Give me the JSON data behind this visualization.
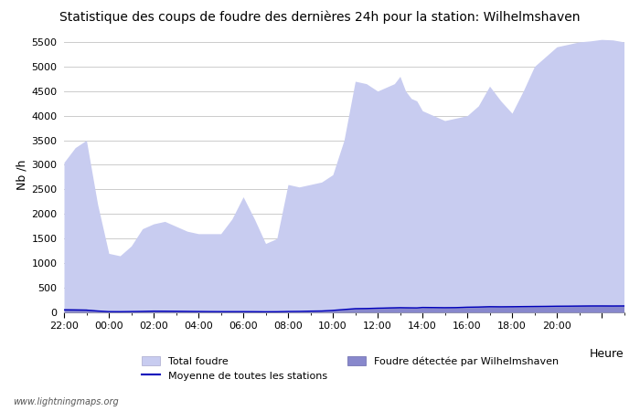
{
  "title": "Statistique des coups de foudre des dernières 24h pour la station: Wilhelmshaven",
  "ylabel": "Nb /h",
  "xlabel": "Heure",
  "watermark": "www.lightningmaps.org",
  "ylim": [
    0,
    5600
  ],
  "yticks": [
    0,
    500,
    1000,
    1500,
    2000,
    2500,
    3000,
    3500,
    4000,
    4500,
    5000,
    5500
  ],
  "xtick_labels": [
    "22:00",
    "00:00",
    "02:00",
    "04:00",
    "06:00",
    "08:00",
    "10:00",
    "12:00",
    "14:00",
    "16:00",
    "18:00",
    "20:00"
  ],
  "total_foudre_color": "#c8ccf0",
  "local_foudre_color": "#8888cc",
  "mean_line_color": "#0000bb",
  "bg_color": "#ffffff",
  "grid_color": "#cccccc",
  "hours": [
    0,
    0.5,
    1,
    1.5,
    2,
    2.5,
    3,
    3.5,
    4,
    4.5,
    5,
    5.5,
    6,
    6.5,
    7,
    7.5,
    8,
    8.5,
    9,
    9.5,
    10,
    10.5,
    11,
    11.5,
    12,
    12.5,
    13,
    13.5,
    14,
    14.25,
    14.5,
    14.75,
    15,
    15.25,
    15.5,
    15.75,
    16,
    16.5,
    17,
    17.5,
    18,
    18.5,
    19,
    19.5,
    20,
    20.5,
    21,
    21.5,
    22,
    22.5,
    23,
    23.5,
    24,
    24.5,
    25
  ],
  "total_values": [
    3050,
    3350,
    3500,
    2200,
    1200,
    1150,
    1350,
    1700,
    1800,
    1850,
    1750,
    1650,
    1600,
    1600,
    1600,
    1900,
    2350,
    1900,
    1400,
    1500,
    2600,
    2550,
    2600,
    2650,
    2800,
    3500,
    4700,
    4650,
    4500,
    4550,
    4600,
    4650,
    4800,
    4500,
    4350,
    4300,
    4100,
    4000,
    3900,
    3950,
    4000,
    4200,
    4600,
    4300,
    4050,
    4500,
    5000,
    5200,
    5400,
    5450,
    5500,
    5520,
    5550,
    5540,
    5500
  ],
  "local_values": [
    80,
    75,
    70,
    40,
    20,
    18,
    25,
    30,
    40,
    38,
    35,
    30,
    25,
    22,
    20,
    20,
    20,
    18,
    15,
    15,
    20,
    22,
    30,
    35,
    50,
    70,
    90,
    95,
    100,
    102,
    105,
    108,
    110,
    108,
    105,
    103,
    100,
    105,
    110,
    112,
    120,
    125,
    130,
    128,
    130,
    132,
    140,
    138,
    140,
    142,
    145,
    147,
    150,
    148,
    150
  ],
  "mean_values": [
    50,
    48,
    45,
    28,
    15,
    14,
    17,
    20,
    25,
    24,
    22,
    20,
    18,
    16,
    15,
    15,
    15,
    14,
    12,
    13,
    18,
    20,
    25,
    28,
    40,
    58,
    75,
    78,
    85,
    87,
    90,
    92,
    95,
    93,
    92,
    91,
    100,
    98,
    95,
    97,
    105,
    108,
    115,
    113,
    115,
    118,
    120,
    122,
    125,
    126,
    128,
    130,
    130,
    129,
    130
  ]
}
